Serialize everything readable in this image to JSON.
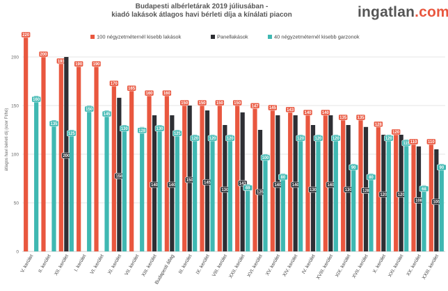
{
  "brand": {
    "name": "ingatlan",
    "suffix": ".com"
  },
  "chart_data": {
    "type": "bar",
    "title": [
      "Budapesti albérletárak 2019 júliusában -",
      "kiadó lakások átlagos havi bérleti díja a kínálati piacon"
    ],
    "ylabel": "átlagos havi bérleti díj (ezer Ft/hó)",
    "ylim": [
      0,
      230
    ],
    "yticks": [
      0,
      50,
      100,
      150,
      200
    ],
    "grid": true,
    "legend": "top",
    "categories": [
      "V. kerület",
      "II. kerület",
      "XII. kerület",
      "I. kerület",
      "VI. kerület",
      "XI. kerület",
      "VII. kerület",
      "XIII. kerület",
      "Budapesti átlag",
      "III. kerület",
      "IX. kerület",
      "VIII. kerület",
      "XXII. kerület",
      "XVI. kerület",
      "XV. kerület",
      "XIV. kerület",
      "IV. kerület",
      "XVIII. kerület",
      "XIX. kerület",
      "XVII. kerület",
      "X. kerület",
      "XXI. kerület",
      "XX. kerület",
      "XXIII. kerület"
    ],
    "series": [
      {
        "name": "100 négyzetméternél kisebb lakások",
        "color": "#e9573f",
        "values": [
          220,
          200,
          193,
          190,
          190,
          170,
          165,
          160,
          160,
          150,
          150,
          150,
          150,
          147,
          145,
          143,
          140,
          140,
          135,
          135,
          128,
          120,
          110,
          110
        ]
      },
      {
        "name": "Panellakások",
        "color": "#2e2f34",
        "values": [
          null,
          null,
          200,
          null,
          null,
          158,
          null,
          140,
          140,
          150,
          145,
          130,
          143,
          125,
          140,
          140,
          130,
          140,
          130,
          128,
          120,
          120,
          108,
          105
        ]
      },
      {
        "name": "40 négyzetméternél kisebb garzonok",
        "color": "#3fb8b2",
        "values": [
          160,
          135,
          125,
          150,
          145,
          130,
          128,
          130,
          125,
          120,
          120,
          120,
          69,
          100,
          80,
          120,
          120,
          120,
          90,
          80,
          120,
          115,
          68,
          90
        ]
      }
    ]
  }
}
